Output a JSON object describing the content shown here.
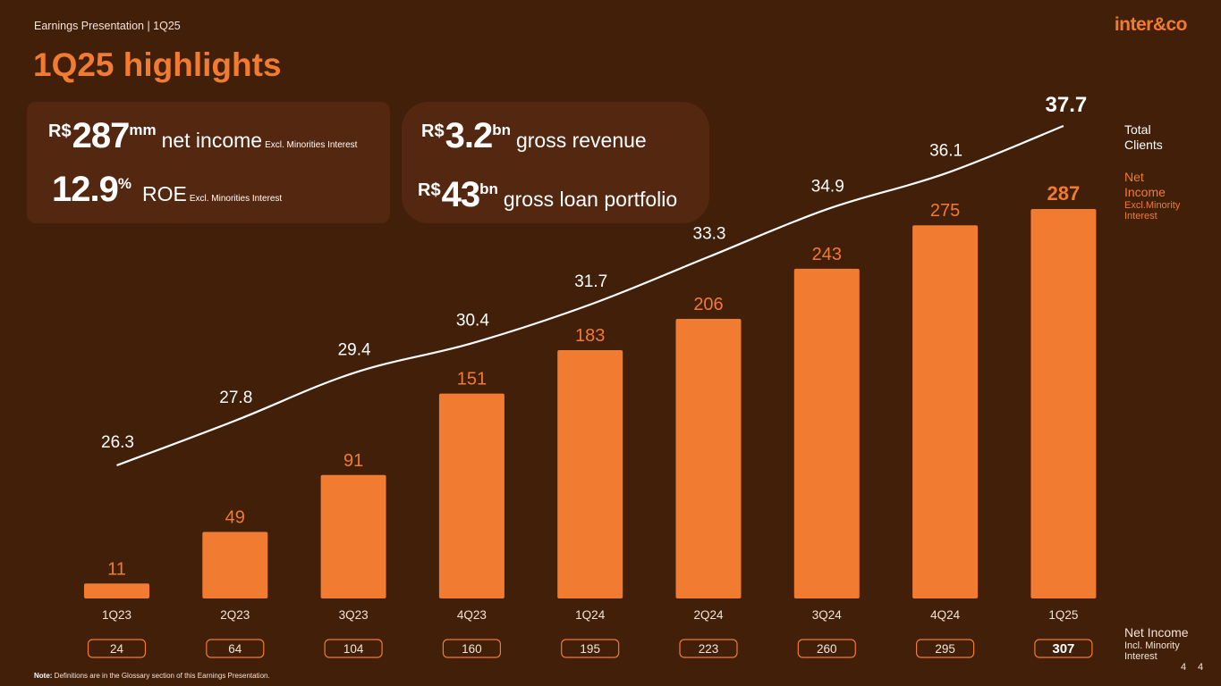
{
  "header": {
    "label": "Earnings Presentation | 1Q25",
    "logo": "inter&co"
  },
  "title": "1Q25 highlights",
  "kpis": {
    "net_income": {
      "currency": "R$",
      "value": "287",
      "unit": "mm",
      "label": "net income",
      "note": "Excl. Minorities Interest"
    },
    "roe": {
      "value": "12.9",
      "unit": "%",
      "label": "ROE",
      "note": "Excl. Minorities Interest"
    },
    "gross_revenue": {
      "currency": "R$",
      "value": "3.2",
      "unit": "bn",
      "label": "gross revenue"
    },
    "loan_portfolio": {
      "currency": "R$",
      "value": "43",
      "unit": "bn",
      "label": "gross loan portfolio"
    }
  },
  "legend": {
    "clients": "Total Clients",
    "net_income": "Net Income",
    "net_income_note": "Excl.Minority Interest",
    "net_income_incl": "Net Income",
    "net_income_incl_note": "Incl. Minority Interest"
  },
  "footnote": {
    "bold": "Note:",
    "text": " Definitions are in the Glossary section of this Earnings Presentation."
  },
  "page_numbers": [
    "4",
    "4"
  ],
  "colors": {
    "background": "#411f09",
    "accent": "#f07b31",
    "card": "#532710",
    "line": "#ffffff"
  },
  "chart_data": {
    "type": "bar",
    "categories": [
      "1Q23",
      "2Q23",
      "3Q23",
      "4Q23",
      "1Q24",
      "2Q24",
      "3Q24",
      "4Q24",
      "1Q25"
    ],
    "series": [
      {
        "name": "Net Income",
        "type": "bar",
        "values": [
          11,
          49,
          91,
          151,
          183,
          206,
          243,
          275,
          287
        ]
      },
      {
        "name": "Total Clients",
        "type": "line",
        "values": [
          26.3,
          27.8,
          29.4,
          30.4,
          31.7,
          33.3,
          34.9,
          36.1,
          37.7
        ]
      },
      {
        "name": "Net Income",
        "type": "table",
        "values": [
          24,
          64,
          104,
          160,
          195,
          223,
          260,
          295,
          307
        ]
      }
    ]
  }
}
